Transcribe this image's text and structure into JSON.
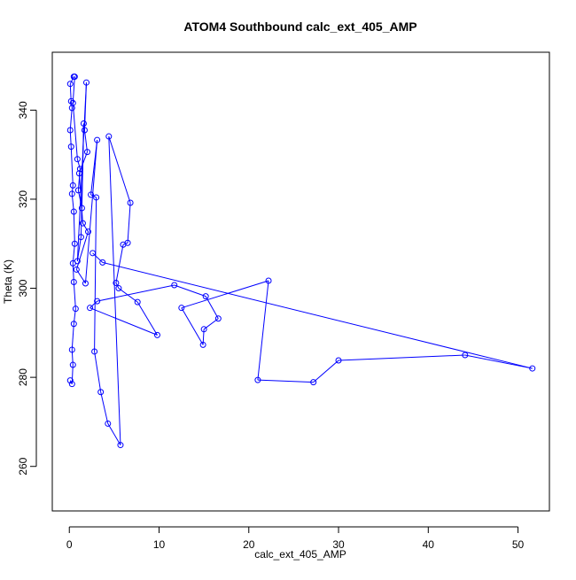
{
  "chart_data": {
    "type": "scatter",
    "title": "ATOM4 Southbound calc_ext_405_AMP",
    "xlabel": "calc_ext_405_AMP",
    "ylabel": "Theta (K)",
    "xlim": [
      -1.9,
      53.5
    ],
    "ylim": [
      250,
      353
    ],
    "x_ticks": [
      "0",
      "10",
      "20",
      "30",
      "40",
      "50"
    ],
    "y_ticks": [
      "260",
      "280",
      "300",
      "320",
      "340"
    ],
    "grid": false,
    "legend": "none",
    "series": [
      {
        "style": "lines+markers",
        "color": "#0000ff",
        "points": [
          {
            "x": 0.1,
            "y": 279.3
          },
          {
            "x": 0.3,
            "y": 278.5
          },
          {
            "x": 0.4,
            "y": 282.8
          },
          {
            "x": 0.3,
            "y": 286.2
          },
          {
            "x": 0.5,
            "y": 292.0
          },
          {
            "x": 0.7,
            "y": 295.4
          },
          {
            "x": 0.5,
            "y": 301.4
          },
          {
            "x": 0.4,
            "y": 305.6
          },
          {
            "x": 0.6,
            "y": 310.0
          },
          {
            "x": 0.5,
            "y": 317.2
          },
          {
            "x": 0.3,
            "y": 321.2
          },
          {
            "x": 0.4,
            "y": 323.1
          },
          {
            "x": 0.2,
            "y": 331.8
          },
          {
            "x": 0.1,
            "y": 335.5
          },
          {
            "x": 0.3,
            "y": 340.5
          },
          {
            "x": 0.2,
            "y": 342.0
          },
          {
            "x": 0.1,
            "y": 345.9
          },
          {
            "x": 0.5,
            "y": 347.5
          },
          {
            "x": 0.6,
            "y": 347.5
          },
          {
            "x": 0.4,
            "y": 341.6
          },
          {
            "x": 0.9,
            "y": 329.0
          },
          {
            "x": 1.2,
            "y": 326.8
          },
          {
            "x": 1.0,
            "y": 322.0
          },
          {
            "x": 1.4,
            "y": 318.0
          },
          {
            "x": 1.6,
            "y": 337.0
          },
          {
            "x": 1.3,
            "y": 311.5
          },
          {
            "x": 0.9,
            "y": 306.1
          },
          {
            "x": 1.9,
            "y": 346.2
          },
          {
            "x": 1.7,
            "y": 335.5
          },
          {
            "x": 2.0,
            "y": 330.6
          },
          {
            "x": 1.1,
            "y": 325.8
          },
          {
            "x": 1.5,
            "y": 314.6
          },
          {
            "x": 2.1,
            "y": 312.7
          },
          {
            "x": 0.8,
            "y": 304.2
          },
          {
            "x": 1.8,
            "y": 301.1
          },
          {
            "x": 3.1,
            "y": 333.3
          },
          {
            "x": 2.4,
            "y": 321.0
          },
          {
            "x": 3.0,
            "y": 320.4
          },
          {
            "x": 2.8,
            "y": 285.8
          },
          {
            "x": 3.5,
            "y": 276.7
          },
          {
            "x": 4.3,
            "y": 269.6
          },
          {
            "x": 5.7,
            "y": 264.8
          },
          {
            "x": 4.4,
            "y": 334.1
          },
          {
            "x": 6.8,
            "y": 319.2
          },
          {
            "x": 6.5,
            "y": 310.2
          },
          {
            "x": 6.0,
            "y": 309.8
          },
          {
            "x": 5.2,
            "y": 301.2
          },
          {
            "x": 5.5,
            "y": 300.0
          },
          {
            "x": 7.6,
            "y": 296.9
          },
          {
            "x": 9.8,
            "y": 289.5
          },
          {
            "x": 2.3,
            "y": 295.6
          },
          {
            "x": 3.1,
            "y": 297.1
          },
          {
            "x": 11.7,
            "y": 300.7
          },
          {
            "x": 15.2,
            "y": 298.2
          },
          {
            "x": 16.6,
            "y": 293.2
          },
          {
            "x": 15.0,
            "y": 290.8
          },
          {
            "x": 14.9,
            "y": 287.3
          },
          {
            "x": 12.5,
            "y": 295.6
          },
          {
            "x": 22.2,
            "y": 301.7
          },
          {
            "x": 21.0,
            "y": 279.4
          },
          {
            "x": 27.2,
            "y": 278.9
          },
          {
            "x": 30.0,
            "y": 283.8
          },
          {
            "x": 44.1,
            "y": 285.0
          },
          {
            "x": 51.6,
            "y": 282.0
          },
          {
            "x": 3.7,
            "y": 305.8
          },
          {
            "x": 2.6,
            "y": 307.9
          }
        ]
      }
    ]
  }
}
